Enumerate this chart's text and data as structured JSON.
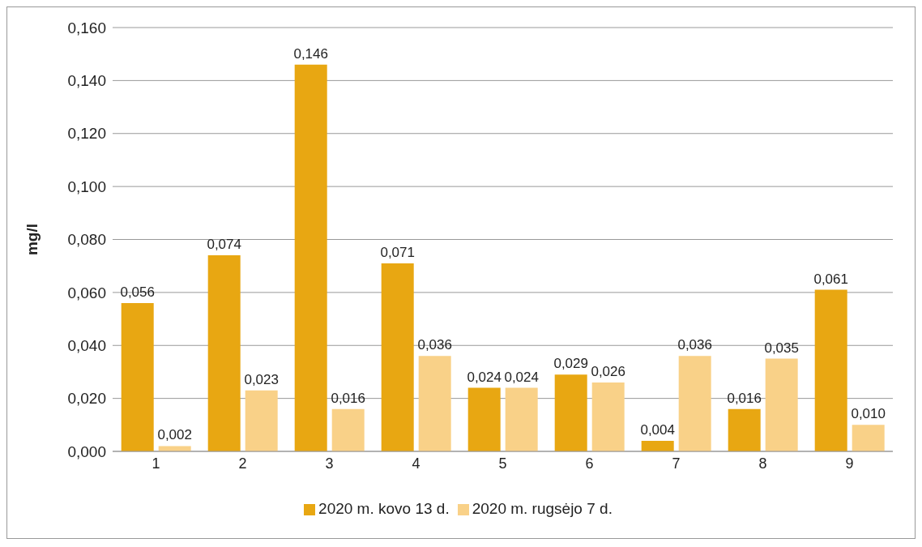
{
  "chart_data": {
    "type": "bar",
    "ylabel": "mg/l",
    "categories": [
      "1",
      "2",
      "3",
      "4",
      "5",
      "6",
      "7",
      "8",
      "9"
    ],
    "series": [
      {
        "name": "2020 m. kovo 13 d.",
        "color": "#e8a712",
        "values": [
          0.056,
          0.074,
          0.146,
          0.071,
          0.024,
          0.029,
          0.004,
          0.016,
          0.061
        ],
        "value_labels": [
          "0,056",
          "0,074",
          "0,146",
          "0,071",
          "0,024",
          "0,029",
          "0,004",
          "0,016",
          "0,061"
        ]
      },
      {
        "name": "2020 m. rugsėjo 7 d.",
        "color": "#f9d188",
        "values": [
          0.002,
          0.023,
          0.016,
          0.036,
          0.024,
          0.026,
          0.036,
          0.035,
          0.01
        ],
        "value_labels": [
          "0,002",
          "0,023",
          "0,016",
          "0,036",
          "0,024",
          "0,026",
          "0,036",
          "0,035",
          "0,010"
        ]
      }
    ],
    "ylim": [
      0,
      0.16
    ],
    "yticks": [
      {
        "value": 0,
        "label": "0,000"
      },
      {
        "value": 0.02,
        "label": "0,020"
      },
      {
        "value": 0.04,
        "label": "0,040"
      },
      {
        "value": 0.06,
        "label": "0,060"
      },
      {
        "value": 0.08,
        "label": "0,080"
      },
      {
        "value": 0.1,
        "label": "0,100"
      },
      {
        "value": 0.12,
        "label": "0,120"
      },
      {
        "value": 0.14,
        "label": "0,140"
      },
      {
        "value": 0.16,
        "label": "0,160"
      }
    ],
    "grid": "y",
    "legend": "bottom"
  }
}
